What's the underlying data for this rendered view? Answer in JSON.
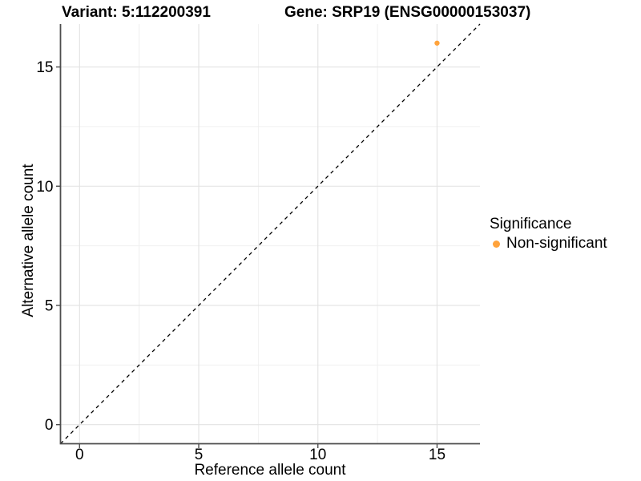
{
  "colors": {
    "point_orange": "#FFA33C",
    "axis_line": "#4d4d4d",
    "grid_major": "#e2e2e2",
    "grid_minor": "#f0f0f0",
    "reference_line": "#000000",
    "text": "#000000",
    "background": "#ffffff"
  },
  "chart_data": {
    "type": "scatter",
    "titles": {
      "left": "Variant: 5:112200391",
      "right": "Gene: SRP19 (ENSG00000153037)"
    },
    "xlabel": "Reference allele count",
    "ylabel": "Alternative allele count",
    "xlim": [
      -0.8,
      16.8
    ],
    "ylim": [
      -0.8,
      16.8
    ],
    "xticks": [
      0,
      5,
      10,
      15
    ],
    "yticks": [
      0,
      5,
      10,
      15
    ],
    "minor_ticks": [
      2.5,
      7.5,
      12.5
    ],
    "grid": true,
    "legend": {
      "title": "Significance",
      "position": "right",
      "entries": [
        {
          "label": "Non-significant",
          "color": "#FFA33C",
          "marker": "circle"
        }
      ]
    },
    "series": [
      {
        "name": "Non-significant",
        "color": "#FFA33C",
        "points": [
          {
            "x": 15,
            "y": 16
          }
        ]
      }
    ],
    "reference_line": {
      "equation": "y = x",
      "style": "dashed",
      "color": "#000000",
      "from": [
        -0.8,
        -0.8
      ],
      "to": [
        16.8,
        16.8
      ]
    }
  }
}
